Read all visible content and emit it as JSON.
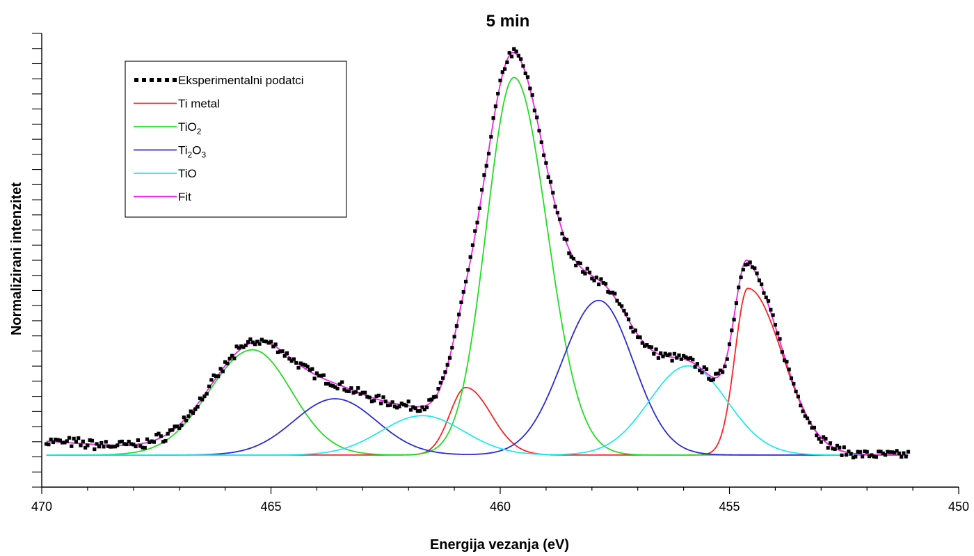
{
  "chart_data": {
    "type": "line",
    "title": "5 min",
    "xlabel": "Energija vezanja (eV)",
    "ylabel": "Normalizirani intenzitet",
    "xlim": [
      470,
      450
    ],
    "x_reversed": true,
    "ylim": [
      -0.08,
      1.05
    ],
    "y_tick_labels": false,
    "x_ticks": [
      "470",
      "465",
      "460",
      "455",
      "450"
    ],
    "x_tick_values": [
      470,
      465,
      460,
      455,
      450
    ],
    "legend_position": "top-left",
    "grid": false,
    "series": [
      {
        "key": "exp",
        "name": "Eksperimentalni podatci",
        "color": "#000000",
        "style": "markers"
      },
      {
        "key": "ti_metal",
        "name": "Ti metal",
        "name_parts": [
          [
            "Ti metal",
            ""
          ]
        ],
        "color": "#ff2020",
        "style": "line",
        "peaks": [
          {
            "center": 454.6,
            "height": 0.415,
            "sigma_left": 0.75,
            "sigma_right": 0.28
          },
          {
            "center": 460.75,
            "height": 0.168,
            "sigma_left": 0.55,
            "sigma_right": 0.35
          }
        ]
      },
      {
        "key": "tio2",
        "name": "TiO2",
        "name_parts": [
          [
            "TiO",
            ""
          ],
          [
            "2",
            "sub"
          ]
        ],
        "color": "#22dd22",
        "style": "line",
        "peaks": [
          {
            "center": 459.7,
            "height": 0.94,
            "sigma_left": 0.72,
            "sigma_right": 0.6
          },
          {
            "center": 465.4,
            "height": 0.262,
            "sigma_left": 0.85,
            "sigma_right": 0.95
          }
        ]
      },
      {
        "key": "ti2o3",
        "name": "Ti2O3",
        "name_parts": [
          [
            "Ti",
            ""
          ],
          [
            "2",
            "sub"
          ],
          [
            "O",
            ""
          ],
          [
            "3",
            "sub"
          ]
        ],
        "color": "#2a2ad8",
        "style": "line",
        "peaks": [
          {
            "center": 457.85,
            "height": 0.385,
            "sigma_left": 0.75,
            "sigma_right": 0.8
          },
          {
            "center": 463.6,
            "height": 0.14,
            "sigma_left": 0.9,
            "sigma_right": 0.9
          }
        ]
      },
      {
        "key": "tio",
        "name": "TiO",
        "name_parts": [
          [
            "TiO",
            ""
          ]
        ],
        "color": "#22e8f0",
        "style": "line",
        "peaks": [
          {
            "center": 455.9,
            "height": 0.222,
            "sigma_left": 0.85,
            "sigma_right": 0.85
          },
          {
            "center": 461.7,
            "height": 0.098,
            "sigma_left": 0.9,
            "sigma_right": 0.9
          }
        ]
      },
      {
        "key": "fit",
        "name": "Fit",
        "name_parts": [
          [
            "Fit",
            ""
          ]
        ],
        "color": "#ee22ee",
        "style": "line",
        "sum_of": [
          "ti_metal",
          "tio2",
          "ti2o3",
          "tio"
        ]
      }
    ],
    "experimental_range": [
      469.9,
      451.1
    ],
    "baseline_tail": {
      "start": 465.5,
      "end": 470,
      "max_value": 0.035
    }
  }
}
